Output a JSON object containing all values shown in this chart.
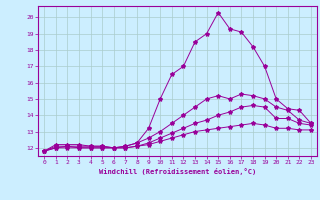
{
  "xlabel": "Windchill (Refroidissement éolien,°C)",
  "bg_color": "#cceeff",
  "grid_color": "#aacccc",
  "line_color": "#990099",
  "xmin": -0.5,
  "xmax": 23.5,
  "ymin": 11.5,
  "ymax": 20.7,
  "yticks": [
    12,
    13,
    14,
    15,
    16,
    17,
    18,
    19,
    20
  ],
  "xticks": [
    0,
    1,
    2,
    3,
    4,
    5,
    6,
    7,
    8,
    9,
    10,
    11,
    12,
    13,
    14,
    15,
    16,
    17,
    18,
    19,
    20,
    21,
    22,
    23
  ],
  "line1": [
    11.8,
    12.2,
    12.2,
    12.2,
    12.1,
    12.1,
    12.0,
    12.1,
    12.3,
    13.2,
    15.0,
    16.5,
    17.0,
    18.5,
    19.0,
    20.3,
    19.3,
    19.1,
    18.2,
    17.0,
    15.0,
    14.4,
    14.3,
    13.5
  ],
  "line2": [
    11.8,
    12.1,
    12.1,
    12.1,
    12.1,
    12.1,
    12.0,
    12.1,
    12.3,
    12.6,
    13.0,
    13.5,
    14.0,
    14.5,
    15.0,
    15.2,
    15.0,
    15.3,
    15.2,
    15.0,
    14.5,
    14.3,
    13.7,
    13.5
  ],
  "line3": [
    11.8,
    12.0,
    12.1,
    12.0,
    12.0,
    12.0,
    12.0,
    12.0,
    12.1,
    12.3,
    12.6,
    12.9,
    13.2,
    13.5,
    13.7,
    14.0,
    14.2,
    14.5,
    14.6,
    14.5,
    13.8,
    13.8,
    13.5,
    13.4
  ],
  "line4": [
    11.8,
    12.0,
    12.0,
    12.0,
    12.0,
    12.0,
    12.0,
    12.0,
    12.1,
    12.2,
    12.4,
    12.6,
    12.8,
    13.0,
    13.1,
    13.2,
    13.3,
    13.4,
    13.5,
    13.4,
    13.2,
    13.2,
    13.1,
    13.1
  ]
}
